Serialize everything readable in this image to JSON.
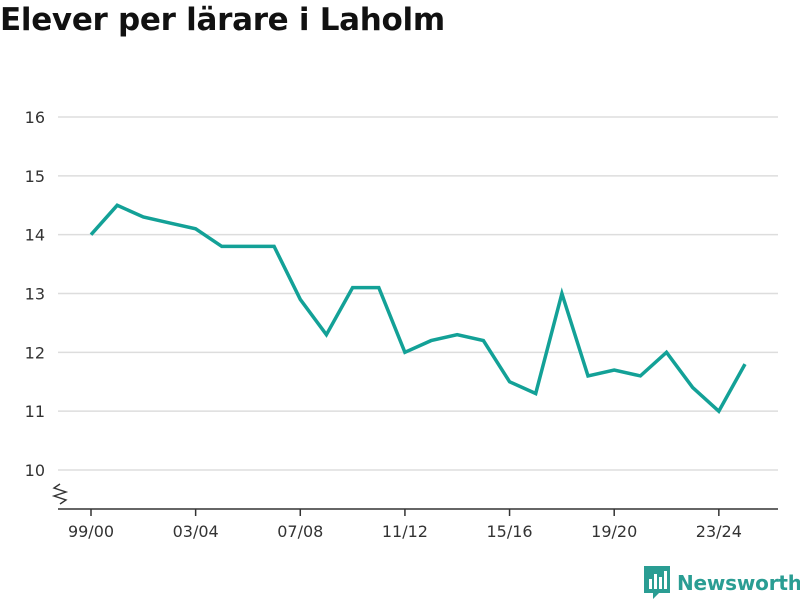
{
  "title": "Elever per lärare i Laholm",
  "brand": {
    "name": "Newsworthy",
    "color": "#2a9d93"
  },
  "colors": {
    "line": "#13a197",
    "grid": "#dddddd",
    "axis": "#333333"
  },
  "chart_data": {
    "type": "line",
    "title": "Elever per lärare i Laholm",
    "xlabel": "",
    "ylabel": "",
    "ylim": [
      10,
      16
    ],
    "yticks": [
      10,
      11,
      12,
      13,
      14,
      15,
      16
    ],
    "y_axis_break": true,
    "grid": true,
    "categories": [
      "99/00",
      "00/01",
      "01/02",
      "02/03",
      "03/04",
      "04/05",
      "05/06",
      "06/07",
      "07/08",
      "08/09",
      "09/10",
      "10/11",
      "11/12",
      "12/13",
      "13/14",
      "14/15",
      "15/16",
      "16/17",
      "17/18",
      "18/19",
      "19/20",
      "20/21",
      "21/22",
      "22/23",
      "23/24",
      "24/25"
    ],
    "xtick_labels": [
      "99/00",
      "03/04",
      "07/08",
      "11/12",
      "15/16",
      "19/20",
      "23/24"
    ],
    "series": [
      {
        "values": [
          14.0,
          14.5,
          14.3,
          14.2,
          14.1,
          13.8,
          13.8,
          13.8,
          12.9,
          12.3,
          13.1,
          13.1,
          12.0,
          12.2,
          12.3,
          12.2,
          11.5,
          11.3,
          13.0,
          11.6,
          11.7,
          11.6,
          12.0,
          11.4,
          11.0,
          11.8
        ]
      }
    ]
  }
}
